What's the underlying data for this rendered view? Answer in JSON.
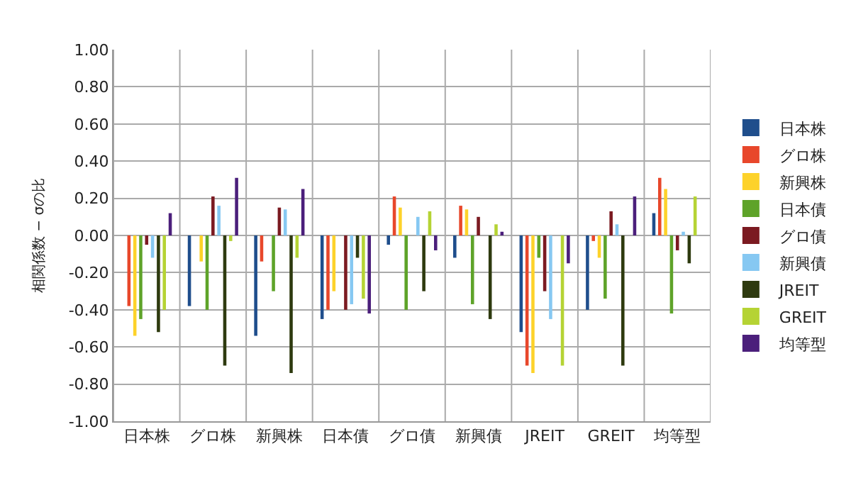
{
  "chart_data": {
    "type": "bar",
    "ylabel": "相関係数 − σの比",
    "categories": [
      "日本株",
      "グロ株",
      "新興株",
      "日本債",
      "グロ債",
      "新興債",
      "JREIT",
      "GREIT",
      "均等型"
    ],
    "series": [
      {
        "name": "日本株",
        "color": "#1f4e8c",
        "values": [
          null,
          -0.38,
          -0.54,
          -0.45,
          -0.05,
          -0.12,
          -0.52,
          -0.4,
          0.12
        ]
      },
      {
        "name": "グロ株",
        "color": "#e8472b",
        "values": [
          -0.38,
          null,
          -0.14,
          -0.4,
          0.21,
          0.16,
          -0.7,
          -0.03,
          0.31
        ]
      },
      {
        "name": "新興株",
        "color": "#fdd22a",
        "values": [
          -0.54,
          -0.14,
          null,
          -0.3,
          0.15,
          0.14,
          -0.74,
          -0.12,
          0.25
        ]
      },
      {
        "name": "日本債",
        "color": "#5ea329",
        "values": [
          -0.45,
          -0.4,
          -0.3,
          null,
          -0.4,
          -0.37,
          -0.12,
          -0.34,
          -0.42
        ]
      },
      {
        "name": "グロ債",
        "color": "#7b1a21",
        "values": [
          -0.05,
          0.21,
          0.15,
          -0.4,
          null,
          0.1,
          -0.3,
          0.13,
          -0.08
        ]
      },
      {
        "name": "新興債",
        "color": "#86c8f2",
        "values": [
          -0.12,
          0.16,
          0.14,
          -0.37,
          0.1,
          null,
          -0.45,
          0.06,
          0.02
        ]
      },
      {
        "name": "JREIT",
        "color": "#2e3a0f",
        "values": [
          -0.52,
          -0.7,
          -0.74,
          -0.12,
          -0.3,
          -0.45,
          null,
          -0.7,
          -0.15
        ]
      },
      {
        "name": "GREIT",
        "color": "#b5d334",
        "values": [
          -0.4,
          -0.03,
          -0.12,
          -0.34,
          0.13,
          0.06,
          -0.7,
          null,
          0.21
        ]
      },
      {
        "name": "均等型",
        "color": "#4b1f7b",
        "values": [
          0.12,
          0.31,
          0.25,
          -0.42,
          -0.08,
          0.02,
          -0.15,
          0.21,
          null
        ]
      }
    ],
    "ylim": [
      -1,
      1
    ],
    "yticks": [
      {
        "value": -1,
        "label": "-1.00"
      },
      {
        "value": -0.8,
        "label": "-0.80"
      },
      {
        "value": -0.6,
        "label": "-0.60"
      },
      {
        "value": -0.4,
        "label": "-0.40"
      },
      {
        "value": -0.2,
        "label": "-0.20"
      },
      {
        "value": 0,
        "label": "0.00"
      },
      {
        "value": 0.2,
        "label": "0.20"
      },
      {
        "value": 0.4,
        "label": "0.40"
      },
      {
        "value": 0.6,
        "label": "0.60"
      },
      {
        "value": 0.8,
        "label": "0.80"
      },
      {
        "value": 1,
        "label": "1.00"
      }
    ],
    "grid": true,
    "legend": "right"
  }
}
